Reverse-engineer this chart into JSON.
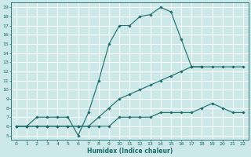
{
  "xlabel": "Humidex (Indice chaleur)",
  "background_color": "#cde8e8",
  "grid_color": "#ffffff",
  "line_color": "#1a6b6b",
  "xlim": [
    -0.5,
    22.5
  ],
  "ylim": [
    4.5,
    19.5
  ],
  "xticks": [
    0,
    1,
    2,
    3,
    4,
    5,
    6,
    7,
    8,
    9,
    10,
    11,
    12,
    13,
    14,
    15,
    16,
    17,
    18,
    19,
    20,
    21,
    22
  ],
  "yticks": [
    5,
    6,
    7,
    8,
    9,
    10,
    11,
    12,
    13,
    14,
    15,
    16,
    17,
    18,
    19
  ],
  "lines": [
    {
      "x": [
        0,
        1,
        2,
        3,
        4,
        5,
        6,
        7,
        8,
        9,
        10,
        11,
        12,
        13,
        14,
        15,
        16,
        17,
        18
      ],
      "y": [
        6,
        6,
        7,
        7,
        7,
        7,
        5,
        7.5,
        11,
        15,
        17,
        17,
        18,
        18.2,
        19,
        18.5,
        15.5,
        12.5,
        12.5
      ]
    },
    {
      "x": [
        0,
        1,
        2,
        3,
        4,
        5,
        6,
        7,
        8,
        9,
        10,
        11,
        12,
        13,
        14,
        15,
        16,
        17,
        18,
        19,
        20,
        21,
        22
      ],
      "y": [
        6,
        6,
        6,
        6,
        6,
        6,
        6,
        6,
        7,
        8,
        9,
        9.5,
        10,
        10.5,
        11,
        11.5,
        12,
        12.5,
        12.5,
        12.5,
        12.5,
        12.5,
        12.5
      ]
    },
    {
      "x": [
        0,
        1,
        2,
        3,
        4,
        5,
        6,
        7,
        8,
        9,
        10,
        11,
        12,
        13,
        14,
        15,
        16,
        17,
        18,
        19,
        20,
        21,
        22
      ],
      "y": [
        6,
        6,
        6,
        6,
        6,
        6,
        6,
        6,
        6,
        6,
        7,
        7,
        7,
        7,
        7.5,
        7.5,
        7.5,
        7.5,
        8,
        8.5,
        8,
        7.5,
        7.5
      ]
    }
  ]
}
